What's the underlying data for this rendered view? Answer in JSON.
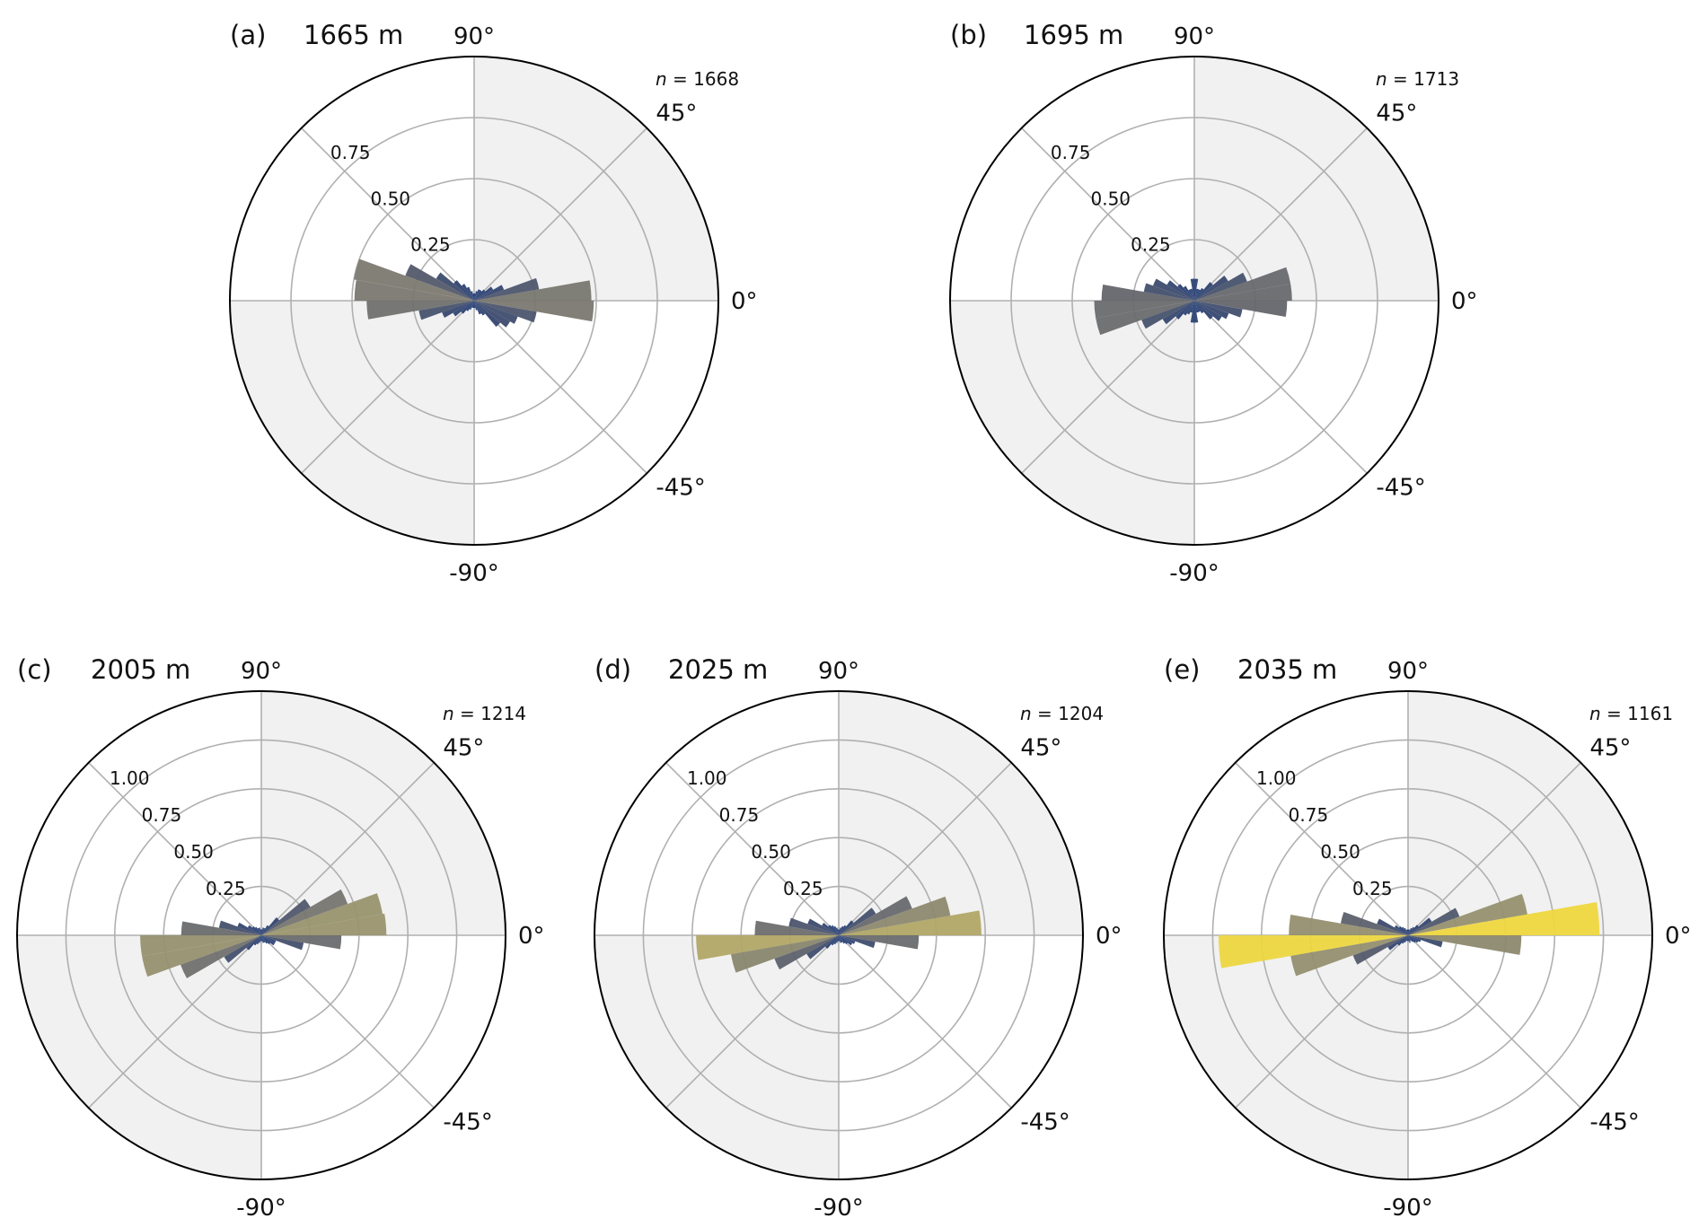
{
  "figure": {
    "colors": {
      "shade": "#f1f1f1",
      "grid": "#b0b0b0",
      "outline": "#000000",
      "cmap": [
        "#1f3a78",
        "#3b4a6e",
        "#5a5e6c",
        "#7c7a70",
        "#a09a6e",
        "#cdbd5a",
        "#f3db3a"
      ]
    }
  },
  "chart_data": [
    {
      "type": "rose",
      "panel": "(a)",
      "depth": "1665 m",
      "n_label": "n = 1668",
      "n_value": 1668,
      "angle_labels": [
        "90°",
        "45°",
        "0°",
        "-45°",
        "-90°"
      ],
      "r_ticks": [
        "0.25",
        "0.50",
        "0.75"
      ],
      "r_max": 0.75,
      "bin_width_deg": 10,
      "bins": [
        {
          "angle": -65,
          "r": 0.06
        },
        {
          "angle": -55,
          "r": 0.07
        },
        {
          "angle": -45,
          "r": 0.14
        },
        {
          "angle": -35,
          "r": 0.17
        },
        {
          "angle": -25,
          "r": 0.19
        },
        {
          "angle": -15,
          "r": 0.26
        },
        {
          "angle": -5,
          "r": 0.49
        },
        {
          "angle": 5,
          "r": 0.48
        },
        {
          "angle": 15,
          "r": 0.27
        },
        {
          "angle": 25,
          "r": 0.13
        },
        {
          "angle": 35,
          "r": 0.09
        },
        {
          "angle": 45,
          "r": 0.06
        },
        {
          "angle": 55,
          "r": 0.05
        },
        {
          "angle": 65,
          "r": 0.05
        },
        {
          "angle": 75,
          "r": 0.04
        },
        {
          "angle": 85,
          "r": 0.03
        },
        {
          "angle": 95,
          "r": 0.03
        },
        {
          "angle": 105,
          "r": 0.04
        },
        {
          "angle": 115,
          "r": 0.06
        },
        {
          "angle": 125,
          "r": 0.08
        },
        {
          "angle": 135,
          "r": 0.11
        },
        {
          "angle": 145,
          "r": 0.18
        },
        {
          "angle": 155,
          "r": 0.3
        },
        {
          "angle": 165,
          "r": 0.5
        },
        {
          "angle": 175,
          "r": 0.49
        },
        {
          "angle": 185,
          "r": 0.44
        },
        {
          "angle": 195,
          "r": 0.23
        },
        {
          "angle": 205,
          "r": 0.14
        },
        {
          "angle": 215,
          "r": 0.1
        },
        {
          "angle": 225,
          "r": 0.07
        },
        {
          "angle": 235,
          "r": 0.05
        },
        {
          "angle": 245,
          "r": 0.04
        },
        {
          "angle": 255,
          "r": 0.03
        },
        {
          "angle": 265,
          "r": 0.03
        },
        {
          "angle": 275,
          "r": 0.03
        },
        {
          "angle": 285,
          "r": 0.04
        }
      ]
    },
    {
      "type": "rose",
      "panel": "(b)",
      "depth": "1695 m",
      "n_label": "n = 1713",
      "n_value": 1713,
      "angle_labels": [
        "90°",
        "45°",
        "0°",
        "-45°",
        "-90°"
      ],
      "r_ticks": [
        "0.25",
        "0.50",
        "0.75"
      ],
      "r_max": 0.75,
      "bin_width_deg": 10,
      "bins": [
        {
          "angle": -65,
          "r": 0.05
        },
        {
          "angle": -55,
          "r": 0.06
        },
        {
          "angle": -45,
          "r": 0.1
        },
        {
          "angle": -35,
          "r": 0.13
        },
        {
          "angle": -25,
          "r": 0.15
        },
        {
          "angle": -15,
          "r": 0.2
        },
        {
          "angle": -5,
          "r": 0.38
        },
        {
          "angle": 5,
          "r": 0.4
        },
        {
          "angle": 15,
          "r": 0.4
        },
        {
          "angle": 25,
          "r": 0.23
        },
        {
          "angle": 35,
          "r": 0.16
        },
        {
          "angle": 45,
          "r": 0.1
        },
        {
          "angle": 55,
          "r": 0.06
        },
        {
          "angle": 65,
          "r": 0.05
        },
        {
          "angle": 75,
          "r": 0.05
        },
        {
          "angle": 85,
          "r": 0.09
        },
        {
          "angle": 95,
          "r": 0.09
        },
        {
          "angle": 105,
          "r": 0.05
        },
        {
          "angle": 115,
          "r": 0.05
        },
        {
          "angle": 125,
          "r": 0.07
        },
        {
          "angle": 135,
          "r": 0.09
        },
        {
          "angle": 145,
          "r": 0.13
        },
        {
          "angle": 155,
          "r": 0.18
        },
        {
          "angle": 165,
          "r": 0.21
        },
        {
          "angle": 175,
          "r": 0.38
        },
        {
          "angle": 185,
          "r": 0.41
        },
        {
          "angle": 195,
          "r": 0.41
        },
        {
          "angle": 205,
          "r": 0.23
        },
        {
          "angle": 215,
          "r": 0.15
        },
        {
          "angle": 225,
          "r": 0.1
        },
        {
          "angle": 235,
          "r": 0.07
        },
        {
          "angle": 245,
          "r": 0.06
        },
        {
          "angle": 255,
          "r": 0.05
        },
        {
          "angle": 265,
          "r": 0.09
        },
        {
          "angle": 275,
          "r": 0.09
        },
        {
          "angle": 285,
          "r": 0.05
        }
      ]
    },
    {
      "type": "rose",
      "panel": "(c)",
      "depth": "2005 m",
      "n_label": "n = 1214",
      "n_value": 1214,
      "angle_labels": [
        "90°",
        "45°",
        "0°",
        "-45°",
        "-90°"
      ],
      "r_ticks": [
        "0.25",
        "0.50",
        "0.75",
        "1.00"
      ],
      "r_max": 1.0,
      "bin_width_deg": 10,
      "bins": [
        {
          "angle": -65,
          "r": 0.04
        },
        {
          "angle": -55,
          "r": 0.05
        },
        {
          "angle": -45,
          "r": 0.06
        },
        {
          "angle": -35,
          "r": 0.08
        },
        {
          "angle": -25,
          "r": 0.08
        },
        {
          "angle": -15,
          "r": 0.22
        },
        {
          "angle": -5,
          "r": 0.41
        },
        {
          "angle": 5,
          "r": 0.64
        },
        {
          "angle": 15,
          "r": 0.63
        },
        {
          "angle": 25,
          "r": 0.47
        },
        {
          "angle": 35,
          "r": 0.29
        },
        {
          "angle": 45,
          "r": 0.12
        },
        {
          "angle": 55,
          "r": 0.06
        },
        {
          "angle": 65,
          "r": 0.04
        },
        {
          "angle": 75,
          "r": 0.04
        },
        {
          "angle": 85,
          "r": 0.03
        },
        {
          "angle": 95,
          "r": 0.03
        },
        {
          "angle": 105,
          "r": 0.04
        },
        {
          "angle": 115,
          "r": 0.04
        },
        {
          "angle": 125,
          "r": 0.05
        },
        {
          "angle": 135,
          "r": 0.06
        },
        {
          "angle": 145,
          "r": 0.08
        },
        {
          "angle": 155,
          "r": 0.13
        },
        {
          "angle": 165,
          "r": 0.22
        },
        {
          "angle": 175,
          "r": 0.41
        },
        {
          "angle": 185,
          "r": 0.62
        },
        {
          "angle": 195,
          "r": 0.62
        },
        {
          "angle": 205,
          "r": 0.44
        },
        {
          "angle": 215,
          "r": 0.22
        },
        {
          "angle": 225,
          "r": 0.1
        },
        {
          "angle": 235,
          "r": 0.06
        },
        {
          "angle": 245,
          "r": 0.05
        },
        {
          "angle": 255,
          "r": 0.04
        },
        {
          "angle": 265,
          "r": 0.03
        },
        {
          "angle": 275,
          "r": 0.03
        },
        {
          "angle": 285,
          "r": 0.04
        }
      ]
    },
    {
      "type": "rose",
      "panel": "(d)",
      "depth": "2025 m",
      "n_label": "n = 1204",
      "n_value": 1204,
      "angle_labels": [
        "90°",
        "45°",
        "0°",
        "-45°",
        "-90°"
      ],
      "r_ticks": [
        "0.25",
        "0.50",
        "0.75",
        "1.00"
      ],
      "r_max": 1.0,
      "bin_width_deg": 10,
      "bins": [
        {
          "angle": -65,
          "r": 0.04
        },
        {
          "angle": -55,
          "r": 0.05
        },
        {
          "angle": -45,
          "r": 0.06
        },
        {
          "angle": -35,
          "r": 0.08
        },
        {
          "angle": -25,
          "r": 0.09
        },
        {
          "angle": -15,
          "r": 0.19
        },
        {
          "angle": -5,
          "r": 0.41
        },
        {
          "angle": 5,
          "r": 0.73
        },
        {
          "angle": 15,
          "r": 0.58
        },
        {
          "angle": 25,
          "r": 0.4
        },
        {
          "angle": 35,
          "r": 0.22
        },
        {
          "angle": 45,
          "r": 0.1
        },
        {
          "angle": 55,
          "r": 0.06
        },
        {
          "angle": 65,
          "r": 0.05
        },
        {
          "angle": 75,
          "r": 0.04
        },
        {
          "angle": 85,
          "r": 0.03
        },
        {
          "angle": 95,
          "r": 0.03
        },
        {
          "angle": 105,
          "r": 0.04
        },
        {
          "angle": 115,
          "r": 0.05
        },
        {
          "angle": 125,
          "r": 0.06
        },
        {
          "angle": 135,
          "r": 0.07
        },
        {
          "angle": 145,
          "r": 0.1
        },
        {
          "angle": 155,
          "r": 0.17
        },
        {
          "angle": 165,
          "r": 0.26
        },
        {
          "angle": 175,
          "r": 0.43
        },
        {
          "angle": 185,
          "r": 0.73
        },
        {
          "angle": 195,
          "r": 0.56
        },
        {
          "angle": 205,
          "r": 0.35
        },
        {
          "angle": 215,
          "r": 0.19
        },
        {
          "angle": 225,
          "r": 0.09
        },
        {
          "angle": 235,
          "r": 0.06
        },
        {
          "angle": 245,
          "r": 0.05
        },
        {
          "angle": 255,
          "r": 0.04
        },
        {
          "angle": 265,
          "r": 0.03
        },
        {
          "angle": 275,
          "r": 0.03
        },
        {
          "angle": 285,
          "r": 0.04
        }
      ]
    },
    {
      "type": "rose",
      "panel": "(e)",
      "depth": "2035 m",
      "n_label": "n = 1161",
      "n_value": 1161,
      "angle_labels": [
        "90°",
        "45°",
        "0°",
        "-45°",
        "-90°"
      ],
      "r_ticks": [
        "0.25",
        "0.50",
        "0.75",
        "1.00"
      ],
      "r_max": 1.0,
      "bin_width_deg": 10,
      "bins": [
        {
          "angle": -65,
          "r": 0.03
        },
        {
          "angle": -55,
          "r": 0.04
        },
        {
          "angle": -45,
          "r": 0.05
        },
        {
          "angle": -35,
          "r": 0.06
        },
        {
          "angle": -25,
          "r": 0.07
        },
        {
          "angle": -15,
          "r": 0.18
        },
        {
          "angle": -5,
          "r": 0.58
        },
        {
          "angle": 5,
          "r": 0.98
        },
        {
          "angle": 15,
          "r": 0.62
        },
        {
          "angle": 25,
          "r": 0.28
        },
        {
          "angle": 35,
          "r": 0.14
        },
        {
          "angle": 45,
          "r": 0.07
        },
        {
          "angle": 55,
          "r": 0.05
        },
        {
          "angle": 65,
          "r": 0.04
        },
        {
          "angle": 75,
          "r": 0.03
        },
        {
          "angle": 85,
          "r": 0.03
        },
        {
          "angle": 95,
          "r": 0.03
        },
        {
          "angle": 105,
          "r": 0.03
        },
        {
          "angle": 115,
          "r": 0.04
        },
        {
          "angle": 125,
          "r": 0.05
        },
        {
          "angle": 135,
          "r": 0.06
        },
        {
          "angle": 145,
          "r": 0.08
        },
        {
          "angle": 155,
          "r": 0.17
        },
        {
          "angle": 165,
          "r": 0.35
        },
        {
          "angle": 175,
          "r": 0.61
        },
        {
          "angle": 185,
          "r": 0.97
        },
        {
          "angle": 195,
          "r": 0.61
        },
        {
          "angle": 205,
          "r": 0.3
        },
        {
          "angle": 215,
          "r": 0.12
        },
        {
          "angle": 225,
          "r": 0.07
        },
        {
          "angle": 235,
          "r": 0.05
        },
        {
          "angle": 245,
          "r": 0.04
        },
        {
          "angle": 255,
          "r": 0.03
        },
        {
          "angle": 265,
          "r": 0.03
        },
        {
          "angle": 275,
          "r": 0.03
        },
        {
          "angle": 285,
          "r": 0.04
        }
      ]
    }
  ]
}
